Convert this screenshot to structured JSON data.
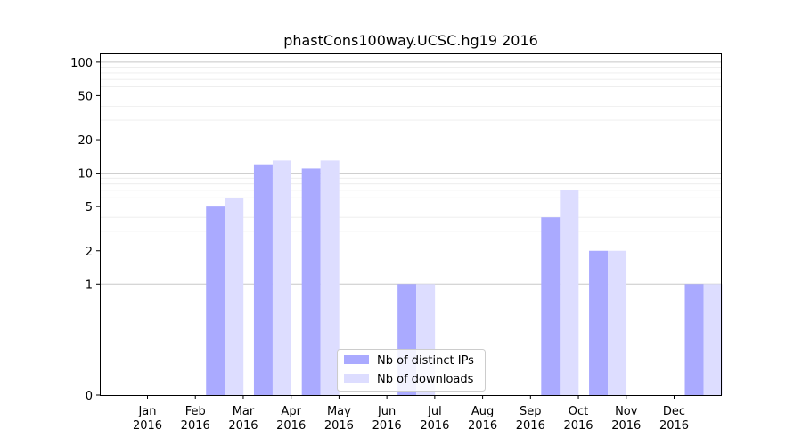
{
  "chart_data": {
    "type": "bar",
    "title": "phastCons100way.UCSC.hg19 2016",
    "xlabel": "",
    "ylabel": "",
    "y_scale": "symlog",
    "ylim": [
      0,
      120
    ],
    "y_ticks": [
      {
        "value": 0,
        "label": "0"
      },
      {
        "value": 1,
        "label": "1"
      },
      {
        "value": 2,
        "label": "2"
      },
      {
        "value": 5,
        "label": "5"
      },
      {
        "value": 10,
        "label": "10"
      },
      {
        "value": 20,
        "label": "20"
      },
      {
        "value": 50,
        "label": "50"
      },
      {
        "value": 100,
        "label": "100"
      }
    ],
    "categories": [
      {
        "month": "Jan",
        "year": "2016"
      },
      {
        "month": "Feb",
        "year": "2016"
      },
      {
        "month": "Mar",
        "year": "2016"
      },
      {
        "month": "Apr",
        "year": "2016"
      },
      {
        "month": "May",
        "year": "2016"
      },
      {
        "month": "Jun",
        "year": "2016"
      },
      {
        "month": "Jul",
        "year": "2016"
      },
      {
        "month": "Aug",
        "year": "2016"
      },
      {
        "month": "Sep",
        "year": "2016"
      },
      {
        "month": "Oct",
        "year": "2016"
      },
      {
        "month": "Nov",
        "year": "2016"
      },
      {
        "month": "Dec",
        "year": "2016"
      }
    ],
    "series": [
      {
        "name": "Nb of distinct IPs",
        "color": "#aaaaff",
        "values": [
          0,
          5,
          12,
          11,
          0,
          1,
          0,
          0,
          4,
          2,
          0,
          1
        ]
      },
      {
        "name": "Nb of downloads",
        "color": "#ddddff",
        "values": [
          0,
          6,
          13,
          13,
          0,
          1,
          0,
          0,
          7,
          2,
          0,
          1
        ]
      }
    ],
    "grid": true,
    "legend_position": "bottom-center"
  }
}
